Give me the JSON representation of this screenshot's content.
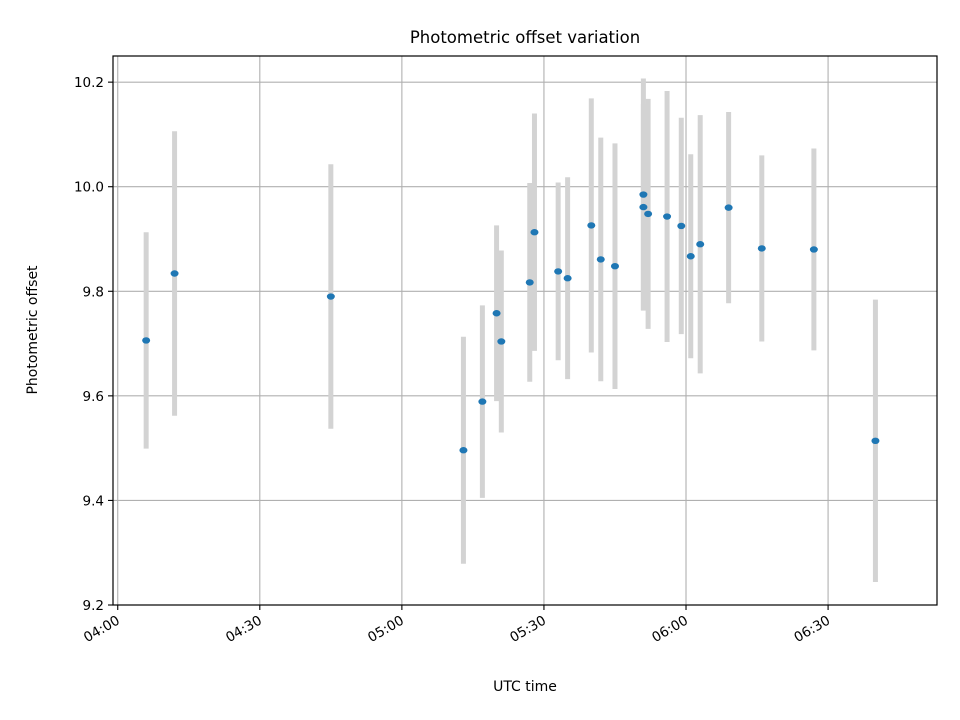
{
  "chart_data": {
    "type": "scatter",
    "title": "Photometric offset variation",
    "xlabel": "UTC time",
    "ylabel": "Photometric offset",
    "xlim": [
      "03:59",
      "06:53"
    ],
    "ylim": [
      9.2,
      10.25
    ],
    "grid": true,
    "legend": "none",
    "x_ticks": [
      "04:00",
      "04:30",
      "05:00",
      "05:30",
      "06:00",
      "06:30"
    ],
    "y_ticks": [
      "9.2",
      "9.4",
      "9.6",
      "9.8",
      "10.0",
      "10.2"
    ],
    "colors": {
      "marker": "#1f77b4",
      "errorbar": "#d3d3d3",
      "grid": "#b0b0b0"
    },
    "series": [
      {
        "points": [
          {
            "x": "04:06",
            "y": 9.706,
            "yerr": 0.207
          },
          {
            "x": "04:12",
            "y": 9.834,
            "yerr": 0.272
          },
          {
            "x": "04:45",
            "y": 9.79,
            "yerr": 0.253
          },
          {
            "x": "05:13",
            "y": 9.496,
            "yerr": 0.217
          },
          {
            "x": "05:17",
            "y": 9.589,
            "yerr": 0.184
          },
          {
            "x": "05:20",
            "y": 9.758,
            "yerr": 0.168
          },
          {
            "x": "05:21",
            "y": 9.704,
            "yerr": 0.174
          },
          {
            "x": "05:27",
            "y": 9.817,
            "yerr": 0.19
          },
          {
            "x": "05:28",
            "y": 9.913,
            "yerr": 0.227
          },
          {
            "x": "05:33",
            "y": 9.838,
            "yerr": 0.17
          },
          {
            "x": "05:35",
            "y": 9.825,
            "yerr": 0.193
          },
          {
            "x": "05:40",
            "y": 9.926,
            "yerr": 0.243
          },
          {
            "x": "05:42",
            "y": 9.861,
            "yerr": 0.233
          },
          {
            "x": "05:45",
            "y": 9.848,
            "yerr": 0.235
          },
          {
            "x": "05:51",
            "y": 9.985,
            "yerr": 0.222
          },
          {
            "x": "05:51",
            "y": 9.961,
            "yerr": 0.197
          },
          {
            "x": "05:52",
            "y": 9.948,
            "yerr": 0.22
          },
          {
            "x": "05:56",
            "y": 9.943,
            "yerr": 0.24
          },
          {
            "x": "05:59",
            "y": 9.925,
            "yerr": 0.207
          },
          {
            "x": "06:01",
            "y": 9.867,
            "yerr": 0.195
          },
          {
            "x": "06:03",
            "y": 9.89,
            "yerr": 0.247
          },
          {
            "x": "06:09",
            "y": 9.96,
            "yerr": 0.183
          },
          {
            "x": "06:16",
            "y": 9.882,
            "yerr": 0.178
          },
          {
            "x": "06:27",
            "y": 9.88,
            "yerr": 0.193
          },
          {
            "x": "06:40",
            "y": 9.514,
            "yerr": 0.27
          }
        ]
      }
    ]
  }
}
